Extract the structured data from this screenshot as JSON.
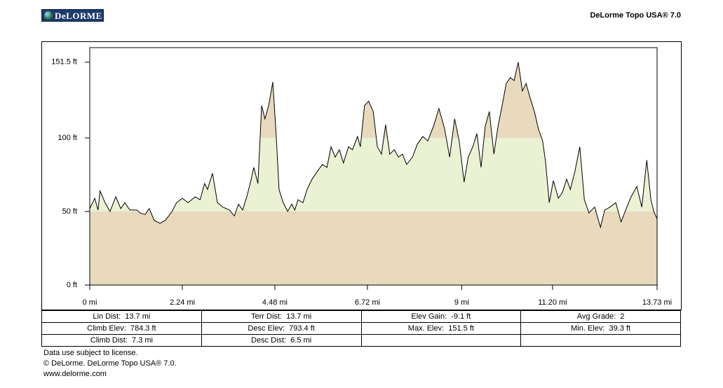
{
  "header": {
    "logo": "DeLORME",
    "product": "DeLorme Topo USA® 7.0"
  },
  "chart_data": {
    "type": "area",
    "x": [
      0,
      0.12,
      0.2,
      0.25,
      0.37,
      0.49,
      0.63,
      0.75,
      0.85,
      0.97,
      1.14,
      1.22,
      1.34,
      1.44,
      1.56,
      1.7,
      1.83,
      1.99,
      2.1,
      2.24,
      2.38,
      2.55,
      2.67,
      2.78,
      2.85,
      2.97,
      3.09,
      3.22,
      3.38,
      3.5,
      3.6,
      3.7,
      3.8,
      3.9,
      3.97,
      4.07,
      4.16,
      4.24,
      4.33,
      4.43,
      4.51,
      4.58,
      4.68,
      4.79,
      4.89,
      4.96,
      5.04,
      5.16,
      5.26,
      5.38,
      5.5,
      5.63,
      5.74,
      5.84,
      5.94,
      6.04,
      6.14,
      6.26,
      6.36,
      6.48,
      6.55,
      6.65,
      6.75,
      6.86,
      6.96,
      7.06,
      7.16,
      7.26,
      7.37,
      7.47,
      7.57,
      7.67,
      7.81,
      7.93,
      8.06,
      8.18,
      8.32,
      8.45,
      8.59,
      8.71,
      8.83,
      8.94,
      9.06,
      9.16,
      9.27,
      9.37,
      9.47,
      9.57,
      9.67,
      9.78,
      9.88,
      9.98,
      10.08,
      10.18,
      10.27,
      10.37,
      10.47,
      10.56,
      10.66,
      10.76,
      10.86,
      10.96,
      11.03,
      11.12,
      11.22,
      11.34,
      11.44,
      11.54,
      11.63,
      11.74,
      11.86,
      11.97,
      12.08,
      12.22,
      12.36,
      12.46,
      12.59,
      12.73,
      12.86,
      12.97,
      13.1,
      13.24,
      13.36,
      13.48,
      13.58,
      13.65,
      13.73
    ],
    "values": [
      52,
      59,
      51,
      64,
      56,
      50,
      60,
      52,
      56,
      51,
      51,
      49,
      48,
      52,
      44,
      42,
      44,
      50,
      56,
      59,
      56,
      60,
      58,
      69,
      65,
      76,
      56,
      53,
      51,
      47,
      55,
      51,
      60,
      71,
      80,
      69,
      122,
      113,
      122,
      138,
      103,
      65,
      56,
      50,
      55,
      51,
      58,
      56,
      65,
      72,
      77,
      82,
      80,
      94,
      87,
      92,
      83,
      94,
      92,
      101,
      94,
      122,
      125,
      118,
      94,
      89,
      109,
      89,
      92,
      87,
      89,
      82,
      87,
      96,
      101,
      98,
      108,
      120,
      106,
      87,
      113,
      98,
      70,
      87,
      94,
      103,
      80,
      108,
      118,
      89,
      108,
      122,
      137,
      141,
      139,
      151.5,
      132,
      137,
      127,
      118,
      106,
      98,
      84,
      56,
      71,
      59,
      63,
      72,
      65,
      77,
      94,
      58,
      49,
      53,
      39.3,
      51,
      53,
      56,
      43,
      51,
      60,
      67,
      53,
      85,
      58,
      50,
      45
    ],
    "line_color": "#000000",
    "bands": [
      {
        "from": 0,
        "to": 50,
        "color": "#e9dabd"
      },
      {
        "from": 50,
        "to": 100,
        "color": "#eaf2d3"
      },
      {
        "from": 100,
        "to": 161.4,
        "color": "#e9dabd"
      }
    ],
    "xlim": [
      0,
      13.73
    ],
    "ylim": [
      0,
      161.4
    ],
    "xticks": [
      {
        "value": 0,
        "label": "0 mi"
      },
      {
        "value": 2.24,
        "label": "2.24 mi"
      },
      {
        "value": 4.48,
        "label": "4.48 mi"
      },
      {
        "value": 6.72,
        "label": "6.72 mi"
      },
      {
        "value": 9,
        "label": "9 mi"
      },
      {
        "value": 11.2,
        "label": "11.20 mi"
      },
      {
        "value": 13.73,
        "label": "13.73 mi"
      }
    ],
    "yticks": [
      {
        "value": 0,
        "label": "0 ft"
      },
      {
        "value": 50,
        "label": "50 ft"
      },
      {
        "value": 100,
        "label": "100 ft"
      },
      {
        "value": 151.5,
        "label": "151.5 ft"
      }
    ]
  },
  "stats": {
    "rows": [
      [
        "Lin Dist:  13.7 mi",
        "Terr Dist:  13.7 mi",
        "Elev Gain:  -9.1 ft",
        "Avg Grade:  2"
      ],
      [
        "Climb Elev:  784.3 ft",
        "Desc Elev:  793.4 ft",
        "Max. Elev:  151.5 ft",
        "Min. Elev:  39.3 ft"
      ],
      [
        "Climb Dist:  7.3 mi",
        "Desc Dist:  6.5 mi"
      ]
    ]
  },
  "footer": [
    "Data use subject to license.",
    "© DeLorme. DeLorme Topo USA® 7.0.",
    "www.delorme.com"
  ]
}
